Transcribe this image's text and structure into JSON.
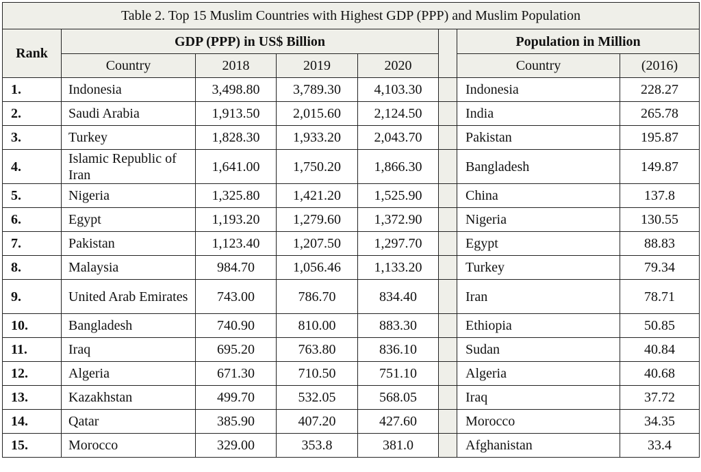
{
  "caption": "Table 2. Top 15 Muslim Countries with Highest GDP (PPP) and Muslim Population",
  "headers": {
    "rank": "Rank",
    "gdp_group": "GDP (PPP) in US$ Billion",
    "pop_group": "Population in Million",
    "country": "Country",
    "y2018": "2018",
    "y2019": "2019",
    "y2020": "2020",
    "pop_country": "Country",
    "pop_year": "(2016)"
  },
  "rows": [
    {
      "rank": "1.",
      "country": "Indonesia",
      "g2018": "3,498.80",
      "g2019": "3,789.30",
      "g2020": "4,103.30",
      "pcountry": "Indonesia",
      "pop": "228.27"
    },
    {
      "rank": "2.",
      "country": "Saudi Arabia",
      "g2018": "1,913.50",
      "g2019": "2,015.60",
      "g2020": "2,124.50",
      "pcountry": "India",
      "pop": "265.78"
    },
    {
      "rank": "3.",
      "country": "Turkey",
      "g2018": "1,828.30",
      "g2019": "1,933.20",
      "g2020": "2,043.70",
      "pcountry": "Pakistan",
      "pop": "195.87"
    },
    {
      "rank": "4.",
      "country": "Islamic Republic of Iran",
      "g2018": "1,641.00",
      "g2019": "1,750.20",
      "g2020": "1,866.30",
      "pcountry": "Bangladesh",
      "pop": "149.87"
    },
    {
      "rank": "5.",
      "country": "Nigeria",
      "g2018": "1,325.80",
      "g2019": "1,421.20",
      "g2020": "1,525.90",
      "pcountry": "China",
      "pop": "137.8"
    },
    {
      "rank": "6.",
      "country": "Egypt",
      "g2018": "1,193.20",
      "g2019": "1,279.60",
      "g2020": "1,372.90",
      "pcountry": "Nigeria",
      "pop": "130.55"
    },
    {
      "rank": "7.",
      "country": "Pakistan",
      "g2018": "1,123.40",
      "g2019": "1,207.50",
      "g2020": "1,297.70",
      "pcountry": "Egypt",
      "pop": "88.83"
    },
    {
      "rank": "8.",
      "country": "Malaysia",
      "g2018": "984.70",
      "g2019": "1,056.46",
      "g2020": "1,133.20",
      "pcountry": "Turkey",
      "pop": "79.34"
    },
    {
      "rank": "9.",
      "country": "United Arab Emirates",
      "g2018": "743.00",
      "g2019": "786.70",
      "g2020": "834.40",
      "pcountry": "Iran",
      "pop": "78.71"
    },
    {
      "rank": "10.",
      "country": "Bangladesh",
      "g2018": "740.90",
      "g2019": "810.00",
      "g2020": "883.30",
      "pcountry": "Ethiopia",
      "pop": "50.85"
    },
    {
      "rank": "11.",
      "country": "Iraq",
      "g2018": "695.20",
      "g2019": "763.80",
      "g2020": "836.10",
      "pcountry": "Sudan",
      "pop": "40.84"
    },
    {
      "rank": "12.",
      "country": "Algeria",
      "g2018": "671.30",
      "g2019": "710.50",
      "g2020": "751.10",
      "pcountry": "Algeria",
      "pop": "40.68"
    },
    {
      "rank": "13.",
      "country": "Kazakhstan",
      "g2018": "499.70",
      "g2019": "532.05",
      "g2020": "568.05",
      "pcountry": "Iraq",
      "pop": "37.72"
    },
    {
      "rank": "14.",
      "country": "Qatar",
      "g2018": "385.90",
      "g2019": "407.20",
      "g2020": "427.60",
      "pcountry": "Morocco",
      "pop": "34.35"
    },
    {
      "rank": "15.",
      "country": "Morocco",
      "g2018": "329.00",
      "g2019": "353.8",
      "g2020": "381.0",
      "pcountry": "Afghanistan",
      "pop": "33.4"
    }
  ]
}
